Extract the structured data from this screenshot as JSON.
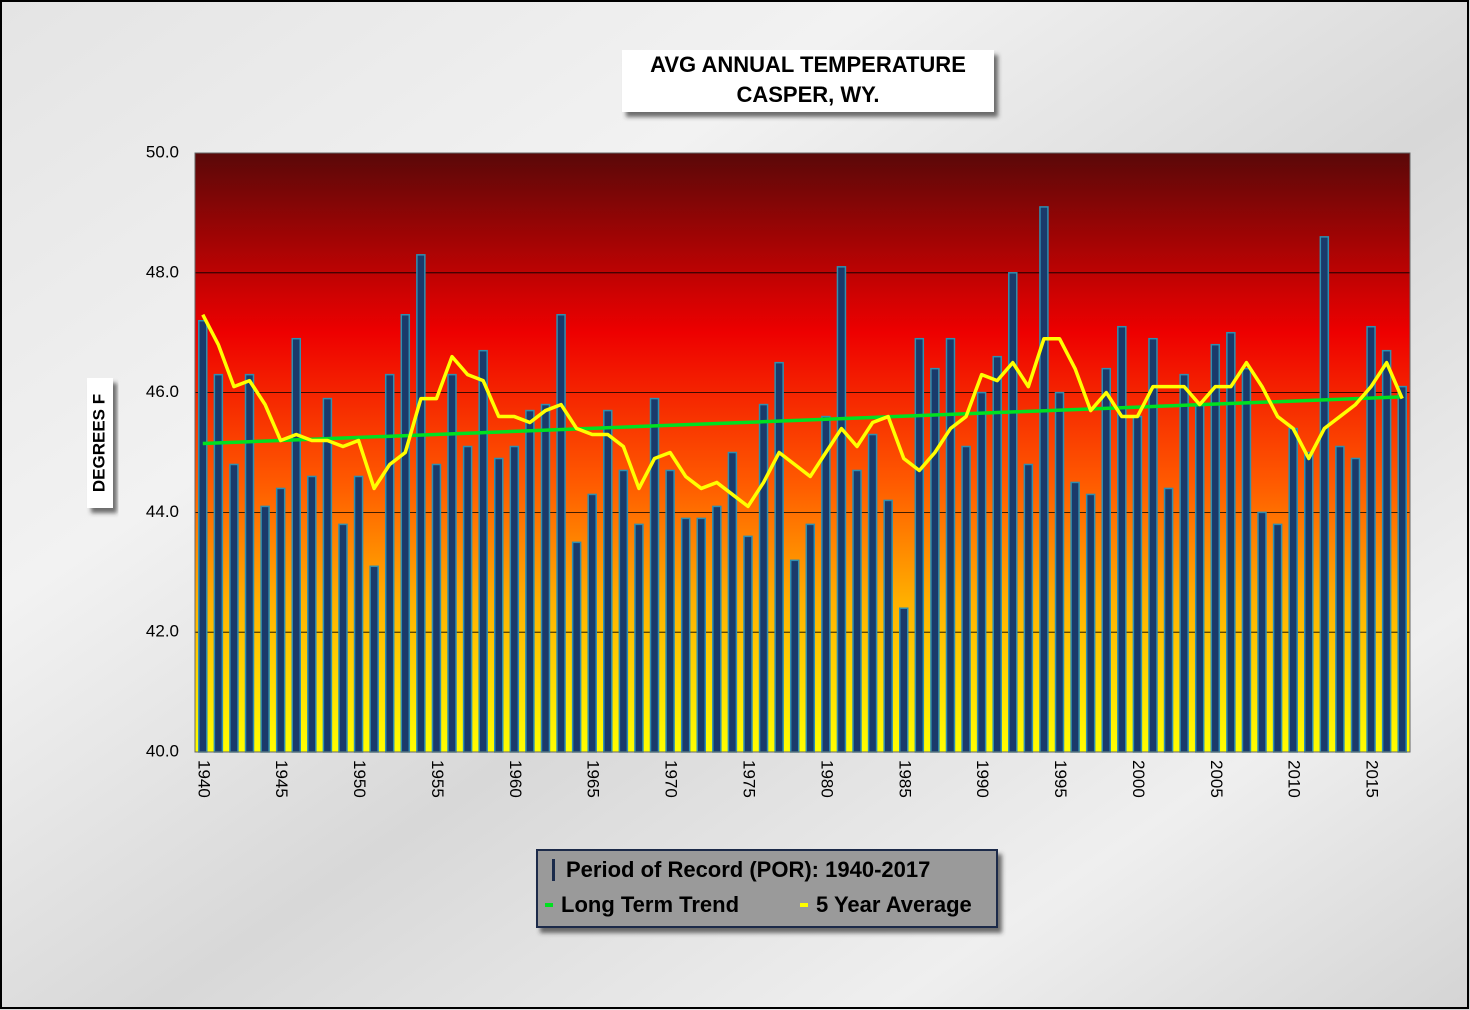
{
  "chart_data": {
    "type": "bar",
    "title": "AVG ANNUAL  TEMPERATURE",
    "subtitle": "CASPER, WY.",
    "y_label": "DEGREES F",
    "x": [
      1940,
      1941,
      1942,
      1943,
      1944,
      1945,
      1946,
      1947,
      1948,
      1949,
      1950,
      1951,
      1952,
      1953,
      1954,
      1955,
      1956,
      1957,
      1958,
      1959,
      1960,
      1961,
      1962,
      1963,
      1964,
      1965,
      1966,
      1967,
      1968,
      1969,
      1970,
      1971,
      1972,
      1973,
      1974,
      1975,
      1976,
      1977,
      1978,
      1979,
      1980,
      1981,
      1982,
      1983,
      1984,
      1985,
      1986,
      1987,
      1988,
      1989,
      1990,
      1991,
      1992,
      1993,
      1994,
      1995,
      1996,
      1997,
      1998,
      1999,
      2000,
      2001,
      2002,
      2003,
      2004,
      2005,
      2006,
      2007,
      2008,
      2009,
      2010,
      2011,
      2012,
      2013,
      2014,
      2015,
      2016,
      2017
    ],
    "xticks": [
      1940,
      1945,
      1950,
      1955,
      1960,
      1965,
      1970,
      1975,
      1980,
      1985,
      1990,
      1995,
      2000,
      2005,
      2010,
      2015
    ],
    "ylim": [
      40,
      50
    ],
    "yticks": [
      {
        "value": 40,
        "label": "40.0"
      },
      {
        "value": 42,
        "label": "42.0"
      },
      {
        "value": 44,
        "label": "44.0"
      },
      {
        "value": 46,
        "label": "46.0"
      },
      {
        "value": 48,
        "label": "48.0"
      },
      {
        "value": 50,
        "label": "50.0"
      }
    ],
    "grid": true,
    "series": [
      {
        "name": "Period of Record (POR):  1940-2017",
        "type": "bar",
        "color": "#1a3a6b",
        "values": [
          47.2,
          46.3,
          44.8,
          46.3,
          44.1,
          44.4,
          46.9,
          44.6,
          45.9,
          43.8,
          44.6,
          43.1,
          46.3,
          47.3,
          48.3,
          44.8,
          46.3,
          45.1,
          46.7,
          44.9,
          45.1,
          45.7,
          45.8,
          47.3,
          43.5,
          44.3,
          45.7,
          44.7,
          43.8,
          45.9,
          44.7,
          43.9,
          43.9,
          44.1,
          45.0,
          43.6,
          45.8,
          46.5,
          43.2,
          43.8,
          45.6,
          48.1,
          44.7,
          45.3,
          44.2,
          42.4,
          46.9,
          46.4,
          46.9,
          45.1,
          46.0,
          46.6,
          48.0,
          44.8,
          49.1,
          46.0,
          44.5,
          44.3,
          46.4,
          47.1,
          45.6,
          46.9,
          44.4,
          46.3,
          45.8,
          46.8,
          47.0,
          46.4,
          44.0,
          43.8,
          45.4,
          45.0,
          48.6,
          45.1,
          44.9,
          47.1,
          46.7,
          46.1
        ]
      },
      {
        "name": "Long Term Trend",
        "type": "line",
        "color": "#00e020",
        "x": [
          1940,
          2017
        ],
        "values": [
          45.15,
          45.93
        ]
      },
      {
        "name": "5 Year Average",
        "type": "line",
        "color": "#ffff00",
        "values": [
          47.3,
          46.8,
          46.1,
          46.2,
          45.8,
          45.2,
          45.3,
          45.2,
          45.2,
          45.1,
          45.2,
          44.4,
          44.8,
          45.0,
          45.9,
          45.9,
          46.6,
          46.3,
          46.2,
          45.6,
          45.6,
          45.5,
          45.7,
          45.8,
          45.4,
          45.3,
          45.3,
          45.1,
          44.4,
          44.9,
          45.0,
          44.6,
          44.4,
          44.5,
          44.3,
          44.1,
          44.5,
          45.0,
          44.8,
          44.6,
          45.0,
          45.4,
          45.1,
          45.5,
          45.6,
          44.9,
          44.7,
          45.0,
          45.4,
          45.6,
          46.3,
          46.2,
          46.5,
          46.1,
          46.9,
          46.9,
          46.4,
          45.7,
          46.0,
          45.6,
          45.6,
          46.1,
          46.1,
          46.1,
          45.8,
          46.1,
          46.1,
          46.5,
          46.1,
          45.6,
          45.4,
          44.9,
          45.4,
          45.6,
          45.8,
          46.1,
          46.5,
          45.9
        ]
      }
    ]
  }
}
